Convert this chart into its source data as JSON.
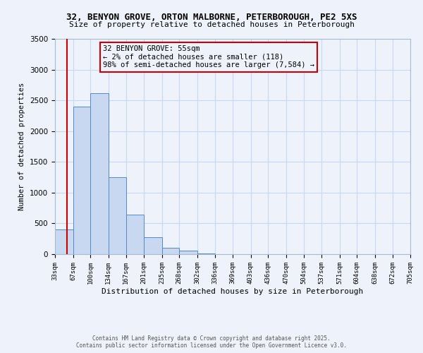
{
  "title_line1": "32, BENYON GROVE, ORTON MALBORNE, PETERBOROUGH, PE2 5XS",
  "title_line2": "Size of property relative to detached houses in Peterborough",
  "xlabel": "Distribution of detached houses by size in Peterborough",
  "ylabel": "Number of detached properties",
  "bar_left_edges": [
    33,
    67,
    100,
    134,
    167,
    201,
    235,
    268,
    302,
    336,
    369,
    403,
    436,
    470,
    504,
    537,
    571,
    604,
    638,
    672
  ],
  "bar_widths": [
    34,
    33,
    34,
    33,
    34,
    34,
    33,
    34,
    34,
    33,
    34,
    33,
    34,
    34,
    33,
    34,
    33,
    34,
    34,
    33
  ],
  "bar_heights": [
    400,
    2400,
    2620,
    1250,
    640,
    270,
    105,
    55,
    10,
    0,
    0,
    0,
    0,
    0,
    0,
    0,
    0,
    0,
    0,
    0
  ],
  "bar_color": "#c8d8f0",
  "bar_edge_color": "#5588cc",
  "xtick_labels": [
    "33sqm",
    "67sqm",
    "100sqm",
    "134sqm",
    "167sqm",
    "201sqm",
    "235sqm",
    "268sqm",
    "302sqm",
    "336sqm",
    "369sqm",
    "403sqm",
    "436sqm",
    "470sqm",
    "504sqm",
    "537sqm",
    "571sqm",
    "604sqm",
    "638sqm",
    "672sqm",
    "705sqm"
  ],
  "xtick_positions": [
    33,
    67,
    100,
    134,
    167,
    201,
    235,
    268,
    302,
    336,
    369,
    403,
    436,
    470,
    504,
    537,
    571,
    604,
    638,
    672,
    705
  ],
  "ylim": [
    0,
    3500
  ],
  "xlim": [
    33,
    705
  ],
  "marker_x": 55,
  "marker_color": "#cc0000",
  "annotation_title": "32 BENYON GROVE: 55sqm",
  "annotation_line1": "← 2% of detached houses are smaller (118)",
  "annotation_line2": "98% of semi-detached houses are larger (7,584) →",
  "annotation_box_color": "#cc0000",
  "grid_color": "#c8d8ee",
  "bg_color": "#eef2fb",
  "footer_line1": "Contains HM Land Registry data © Crown copyright and database right 2025.",
  "footer_line2": "Contains public sector information licensed under the Open Government Licence v3.0."
}
